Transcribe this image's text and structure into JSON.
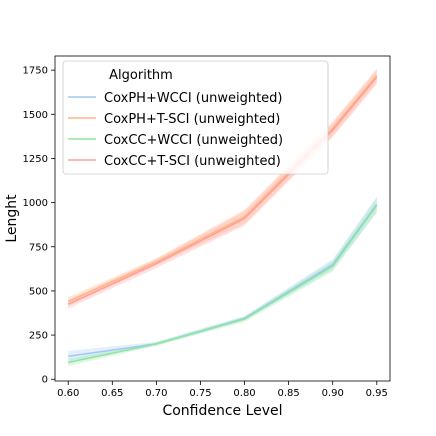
{
  "chart_data": {
    "type": "line",
    "title": "",
    "xlabel": "Confidence Level",
    "ylabel": "Lenght",
    "x": [
      0.6,
      0.7,
      0.8,
      0.9,
      0.95
    ],
    "xlim": [
      0.585,
      0.965
    ],
    "ylim": [
      -10,
      1830
    ],
    "xticks": [
      0.6,
      0.65,
      0.7,
      0.75,
      0.8,
      0.85,
      0.9,
      0.95
    ],
    "xtick_labels": [
      "0.60",
      "0.65",
      "0.70",
      "0.75",
      "0.80",
      "0.85",
      "0.90",
      "0.95"
    ],
    "yticks": [
      0,
      250,
      500,
      750,
      1000,
      1250,
      1500,
      1750
    ],
    "ytick_labels": [
      "0",
      "250",
      "500",
      "750",
      "1000",
      "1250",
      "1500",
      "1750"
    ],
    "grid": false,
    "legend": {
      "title": "Algorithm",
      "placement": "top-left"
    },
    "series": [
      {
        "name": "CoxPH+WCCI (unweighted)",
        "color": "#a1c9f4",
        "values": [
          130,
          200,
          345,
          650,
          990
        ],
        "band": [
          [
            100,
            160
          ],
          [
            190,
            212
          ],
          [
            335,
            358
          ],
          [
            620,
            680
          ],
          [
            945,
            1035
          ]
        ]
      },
      {
        "name": "CoxPH+T-SCI (unweighted)",
        "color": "#ffb482",
        "values": [
          440,
          665,
          920,
          1420,
          1720
        ],
        "band": [
          [
            415,
            465
          ],
          [
            645,
            685
          ],
          [
            880,
            960
          ],
          [
            1380,
            1460
          ],
          [
            1680,
            1760
          ]
        ]
      },
      {
        "name": "CoxCC+WCCI (unweighted)",
        "color": "#8de5a1",
        "values": [
          95,
          200,
          340,
          640,
          985
        ],
        "band": [
          [
            75,
            115
          ],
          [
            190,
            210
          ],
          [
            325,
            355
          ],
          [
            610,
            670
          ],
          [
            945,
            1025
          ]
        ]
      },
      {
        "name": "CoxCC+T-SCI (unweighted)",
        "color": "#ff9f9b",
        "values": [
          425,
          655,
          910,
          1410,
          1710
        ],
        "band": [
          [
            400,
            450
          ],
          [
            630,
            680
          ],
          [
            870,
            950
          ],
          [
            1370,
            1450
          ],
          [
            1670,
            1750
          ]
        ]
      }
    ]
  }
}
